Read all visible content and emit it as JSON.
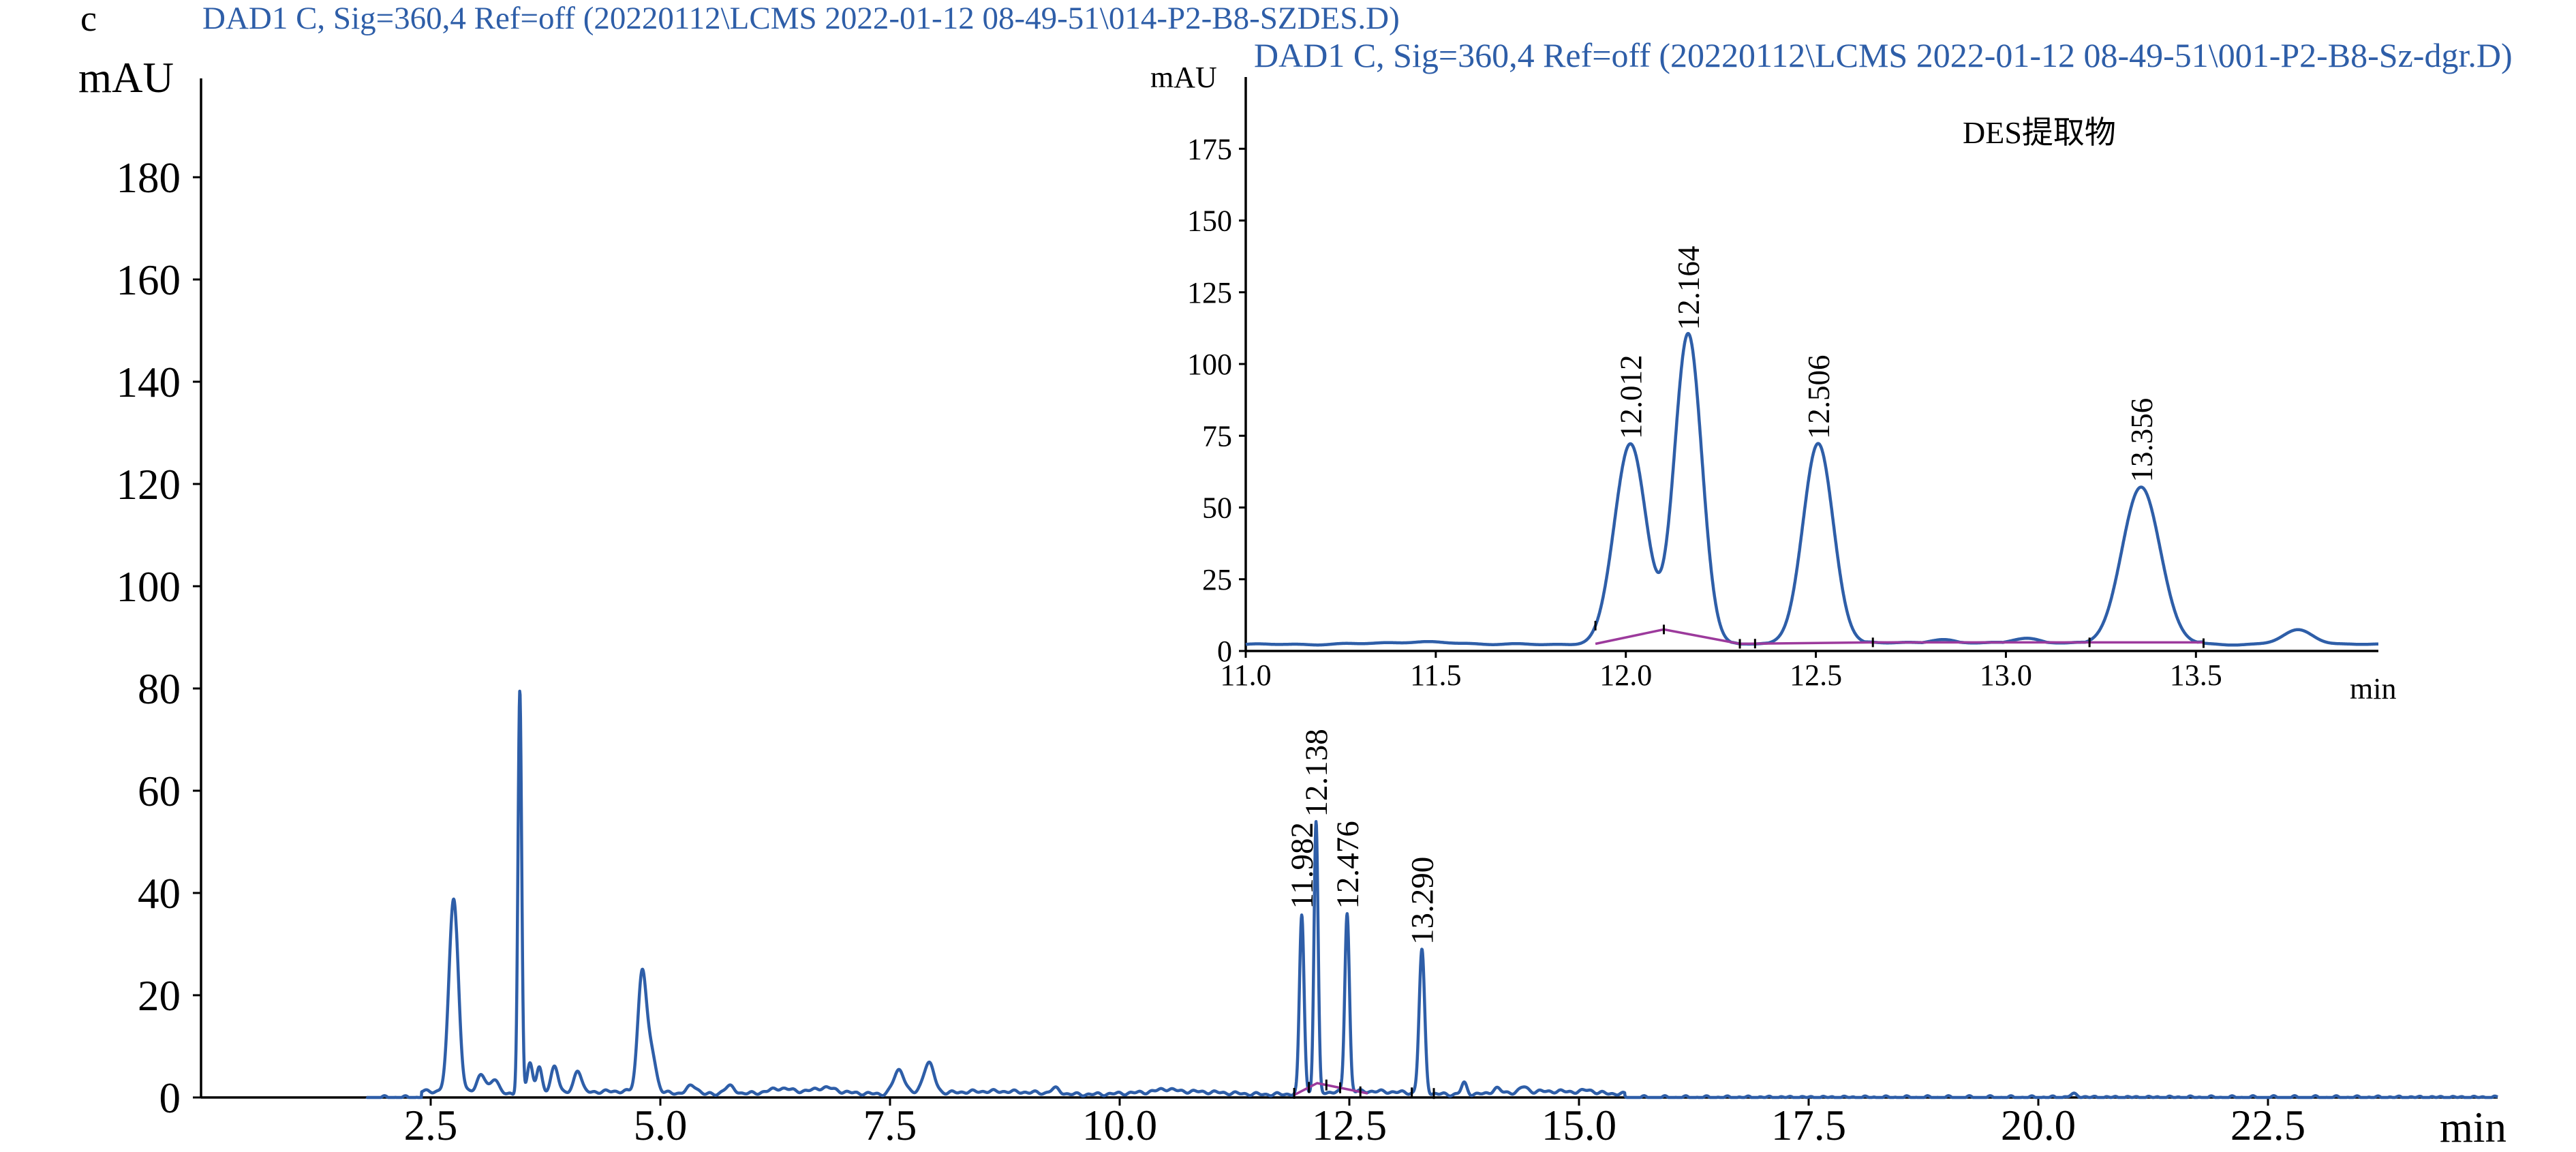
{
  "chart_data": [
    {
      "type": "line",
      "panel_label": "c",
      "title": "DAD1 C, Sig=360,4 Ref=off (20220112\\LCMS 2022-01-12 08-49-51\\014-P2-B8-SZDES.D)",
      "xlabel": "min",
      "ylabel": "mAU",
      "xlim": [
        0,
        25.5
      ],
      "ylim": [
        0,
        200
      ],
      "xticks": [
        2.5,
        5.0,
        7.5,
        10.0,
        12.5,
        15.0,
        17.5,
        20.0,
        22.5
      ],
      "xtick_labels": [
        "2.5",
        "5.0",
        "7.5",
        "10.0",
        "12.5",
        "15.0",
        "17.5",
        "20.0",
        "22.5"
      ],
      "yticks": [
        0,
        20,
        40,
        60,
        80,
        100,
        120,
        140,
        160,
        180
      ],
      "ytick_labels": [
        "0",
        "20",
        "40",
        "60",
        "80",
        "100",
        "120",
        "140",
        "160",
        "180"
      ],
      "baseline": {
        "x": [
          11.9,
          12.15,
          12.7
        ],
        "y": [
          0.5,
          2.8,
          0.8
        ]
      },
      "peaks": [
        {
          "x": 2.75,
          "y": 38,
          "width": 0.05
        },
        {
          "x": 3.05,
          "y": 3.5,
          "width": 0.05
        },
        {
          "x": 3.2,
          "y": 3,
          "width": 0.04
        },
        {
          "x": 3.47,
          "y": 79,
          "width": 0.02
        },
        {
          "x": 3.58,
          "y": 6,
          "width": 0.03
        },
        {
          "x": 3.68,
          "y": 5.5,
          "width": 0.03
        },
        {
          "x": 3.85,
          "y": 5.5,
          "width": 0.04
        },
        {
          "x": 4.1,
          "y": 4.5,
          "width": 0.04
        },
        {
          "x": 4.8,
          "y": 23,
          "width": 0.045
        },
        {
          "x": 4.9,
          "y": 8,
          "width": 0.05
        },
        {
          "x": 5.35,
          "y": 1.6,
          "width": 0.06
        },
        {
          "x": 5.75,
          "y": 1.5,
          "width": 0.06
        },
        {
          "x": 6.3,
          "y": 0.7,
          "width": 0.1
        },
        {
          "x": 6.8,
          "y": 0.8,
          "width": 0.1
        },
        {
          "x": 7.6,
          "y": 4.8,
          "width": 0.06
        },
        {
          "x": 7.92,
          "y": 6,
          "width": 0.06
        },
        {
          "x": 9.3,
          "y": 1,
          "width": 0.05
        },
        {
          "x": 10.5,
          "y": 0.5,
          "width": 0.08
        },
        {
          "x": 11.982,
          "y": 35,
          "width": 0.025
        },
        {
          "x": 12.138,
          "y": 53,
          "width": 0.022
        },
        {
          "x": 12.476,
          "y": 35,
          "width": 0.025
        },
        {
          "x": 13.29,
          "y": 28,
          "width": 0.03
        },
        {
          "x": 13.75,
          "y": 2.2,
          "width": 0.03
        },
        {
          "x": 14.1,
          "y": 1,
          "width": 0.04
        },
        {
          "x": 14.4,
          "y": 1,
          "width": 0.04
        },
        {
          "x": 15.1,
          "y": 0.5,
          "width": 0.05
        },
        {
          "x": 20.4,
          "y": 0.6,
          "width": 0.05
        }
      ],
      "peak_labels": [
        {
          "x": 11.982,
          "y": 35,
          "text": "11.982"
        },
        {
          "x": 12.138,
          "y": 53,
          "text": "12.138"
        },
        {
          "x": 12.476,
          "y": 35,
          "text": "12.476"
        },
        {
          "x": 13.29,
          "y": 28,
          "text": "13.290"
        }
      ],
      "integration_marks": [
        11.9,
        12.06,
        12.25,
        12.4,
        12.62,
        13.18,
        13.42
      ],
      "colors": {
        "trace": "#2e5ea8",
        "baseline": "#9c3a9c"
      }
    },
    {
      "type": "line",
      "title": "DAD1 C, Sig=360,4 Ref=off (20220112\\LCMS 2022-01-12 08-49-51\\001-P2-B8-Sz-dgr.D)",
      "annotation": "DES提取物",
      "xlabel": "min",
      "ylabel": "mAU",
      "xlim": [
        11.0,
        14.0
      ],
      "ylim": [
        0,
        200
      ],
      "xticks": [
        11.0,
        11.5,
        12.0,
        12.5,
        13.0,
        13.5
      ],
      "xtick_labels": [
        "11.0",
        "11.5",
        "12.0",
        "12.5",
        "13.0",
        "13.5"
      ],
      "yticks": [
        0,
        25,
        50,
        75,
        100,
        125,
        150,
        175
      ],
      "ytick_labels": [
        "0",
        "25",
        "50",
        "75",
        "100",
        "125",
        "150",
        "175"
      ],
      "baseline": {
        "x": [
          11.92,
          12.1,
          12.3,
          12.65,
          13.22,
          13.52
        ],
        "y": [
          2.5,
          7.5,
          2.5,
          3.0,
          3.0,
          3.0
        ]
      },
      "peaks": [
        {
          "x": 12.012,
          "y": 70,
          "width": 0.042
        },
        {
          "x": 12.164,
          "y": 108,
          "width": 0.036
        },
        {
          "x": 12.506,
          "y": 70,
          "width": 0.04
        },
        {
          "x": 13.356,
          "y": 55,
          "width": 0.05
        },
        {
          "x": 12.83,
          "y": 1.5,
          "width": 0.04
        },
        {
          "x": 13.05,
          "y": 2,
          "width": 0.04
        },
        {
          "x": 13.77,
          "y": 5,
          "width": 0.04
        },
        {
          "x": 11.45,
          "y": 0.8,
          "width": 0.1
        }
      ],
      "peak_labels": [
        {
          "x": 12.012,
          "y": 70,
          "text": "12.012"
        },
        {
          "x": 12.164,
          "y": 108,
          "text": "12.164"
        },
        {
          "x": 12.506,
          "y": 70,
          "text": "12.506"
        },
        {
          "x": 13.356,
          "y": 55,
          "text": "13.356"
        }
      ],
      "integration_marks": [
        11.92,
        12.1,
        12.3,
        12.34,
        12.65,
        13.22,
        13.52
      ],
      "colors": {
        "trace": "#2e5ea8",
        "baseline": "#9c3a9c"
      }
    }
  ]
}
